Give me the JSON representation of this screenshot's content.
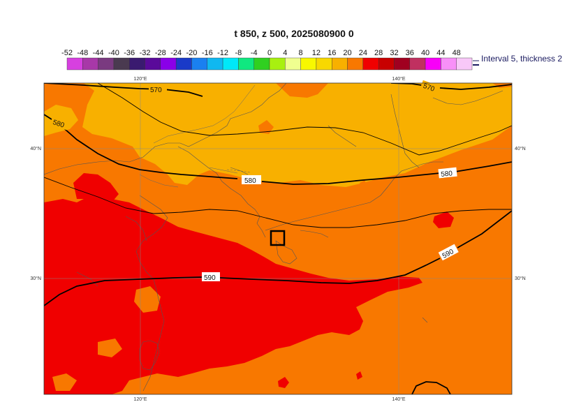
{
  "title": "t 850, z 500, 2025080900 0",
  "legend": {
    "ticks": [
      "-52",
      "-48",
      "-44",
      "-40",
      "-36",
      "-32",
      "-28",
      "-24",
      "-20",
      "-16",
      "-12",
      "-8",
      "-4",
      "0",
      "4",
      "8",
      "12",
      "16",
      "20",
      "24",
      "28",
      "32",
      "36",
      "40",
      "44",
      "48"
    ],
    "colors": [
      "#d740e0",
      "#a838a8",
      "#7a3a80",
      "#4a3a50",
      "#3a1a70",
      "#5a0a9a",
      "#8a00e8",
      "#1a3ac8",
      "#1a80f0",
      "#10b8f0",
      "#00e8f8",
      "#10e880",
      "#30d020",
      "#a8f010",
      "#f0ff90",
      "#f8f800",
      "#f8d800",
      "#f8b000",
      "#f87800",
      "#f00000",
      "#c80000",
      "#a00020",
      "#c03060",
      "#f800f8",
      "#f890f8",
      "#f8c8f8"
    ],
    "note": "Interval 5, thickness 2"
  },
  "axes": {
    "top_lon_labels": [
      "120°E",
      "140°E"
    ],
    "bottom_lon_labels": [
      "120°E",
      "140°E"
    ],
    "left_lat_labels": [
      "40°N",
      "30°N"
    ],
    "right_lat_labels": [
      "40°N",
      "30°N"
    ]
  },
  "field_colors": {
    "band_12_16": "#f8b000",
    "band_16_20": "#f87800",
    "band_20_24": "#f00000"
  },
  "contours": [
    {
      "name": "z500-570",
      "label": "570"
    },
    {
      "name": "z500-580",
      "label": "580"
    },
    {
      "name": "z500-590",
      "label": "590"
    }
  ]
}
